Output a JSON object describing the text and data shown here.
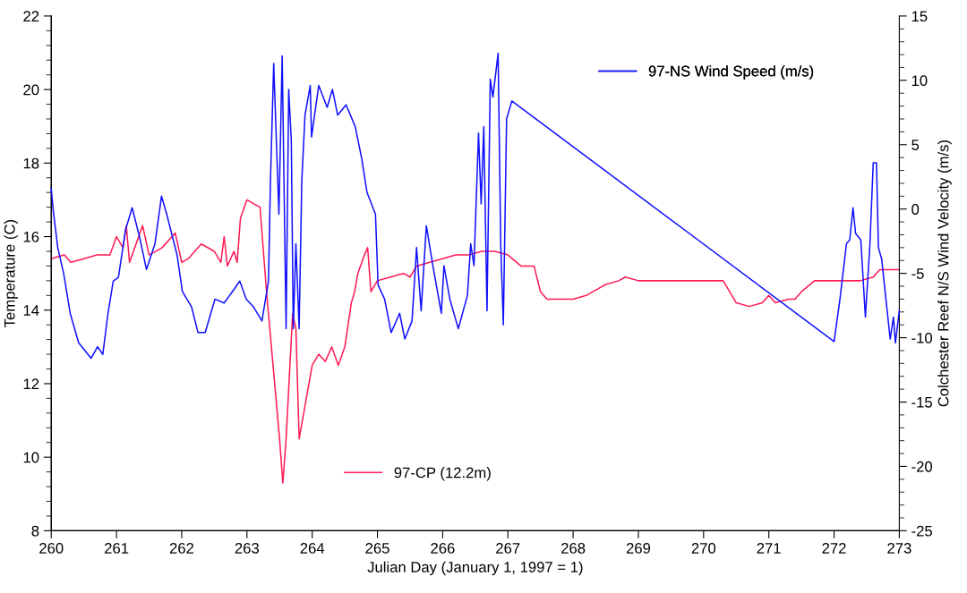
{
  "chart_data": {
    "type": "line",
    "xlabel": "Julian Day (January 1, 1997 = 1)",
    "ylabel": "Temperature (C)",
    "y2label": "Colchester Reef N/S Wind Velocity (m/s)",
    "xlim": [
      260,
      273
    ],
    "xticks": [
      260,
      261,
      262,
      263,
      264,
      265,
      266,
      267,
      268,
      269,
      270,
      271,
      272,
      273
    ],
    "ylim": [
      8,
      22
    ],
    "yticks": [
      8,
      10,
      12,
      14,
      16,
      18,
      20,
      22
    ],
    "y2lim": [
      -25,
      15
    ],
    "y2ticks": [
      -25,
      -20,
      -15,
      -10,
      -5,
      0,
      5,
      10,
      15
    ],
    "grid": false,
    "legend": "top right",
    "marker": "none",
    "line_style": "solid",
    "series": [
      {
        "name": "97-CP (12.2m)",
        "color": "#ff1a55",
        "axis": "y",
        "x": [
          260.0,
          260.2,
          260.3,
          260.5,
          260.7,
          260.9,
          261.0,
          261.1,
          261.15,
          261.2,
          261.3,
          261.4,
          261.5,
          261.7,
          261.9,
          262.0,
          262.1,
          262.3,
          262.5,
          262.6,
          262.65,
          262.7,
          262.8,
          262.85,
          262.9,
          263.0,
          263.1,
          263.2,
          263.3,
          263.4,
          263.5,
          263.55,
          263.6,
          263.7,
          263.75,
          263.8,
          263.9,
          264.0,
          264.1,
          264.2,
          264.3,
          264.4,
          264.5,
          264.6,
          264.65,
          264.7,
          264.8,
          264.85,
          264.9,
          265.0,
          265.2,
          265.4,
          265.5,
          265.6,
          265.8,
          266.0,
          266.2,
          266.4,
          266.6,
          266.8,
          267.0,
          267.2,
          267.4,
          267.5,
          267.6,
          267.8,
          268.0,
          268.2,
          268.4,
          268.5,
          268.7,
          268.8,
          269.0,
          269.5,
          270.0,
          270.3,
          270.4,
          270.5,
          270.7,
          270.9,
          271.0,
          271.1,
          271.3,
          271.4,
          271.5,
          271.7,
          272.0,
          272.2,
          272.4,
          272.6,
          272.7,
          273.0
        ],
        "values": [
          15.4,
          15.5,
          15.3,
          15.4,
          15.5,
          15.5,
          16.0,
          15.7,
          16.3,
          15.3,
          15.8,
          16.3,
          15.5,
          15.7,
          16.1,
          15.3,
          15.4,
          15.8,
          15.6,
          15.3,
          16.0,
          15.2,
          15.6,
          15.3,
          16.5,
          17.0,
          16.9,
          16.8,
          14.5,
          12.5,
          10.5,
          9.3,
          10.5,
          13.9,
          13.5,
          10.5,
          11.5,
          12.5,
          12.8,
          12.6,
          13.0,
          12.5,
          13.0,
          14.2,
          14.5,
          15.0,
          15.5,
          15.7,
          14.5,
          14.8,
          14.9,
          15.0,
          14.9,
          15.2,
          15.3,
          15.4,
          15.5,
          15.5,
          15.6,
          15.6,
          15.5,
          15.2,
          15.2,
          14.5,
          14.3,
          14.3,
          14.3,
          14.4,
          14.6,
          14.7,
          14.8,
          14.9,
          14.8,
          14.8,
          14.8,
          14.8,
          14.5,
          14.2,
          14.1,
          14.2,
          14.4,
          14.2,
          14.3,
          14.3,
          14.5,
          14.8,
          14.8,
          14.8,
          14.8,
          14.9,
          15.1,
          15.1
        ]
      },
      {
        "name": "97-NS Wind Speed (m/s)",
        "color": "#1010ff",
        "axis": "y2",
        "x": [
          260.0,
          260.03,
          260.1,
          260.19,
          260.29,
          260.42,
          260.61,
          260.71,
          260.79,
          260.87,
          260.95,
          261.03,
          261.14,
          261.24,
          261.35,
          261.46,
          261.59,
          261.69,
          261.77,
          261.93,
          262.01,
          262.15,
          262.25,
          262.36,
          262.51,
          262.65,
          262.78,
          262.89,
          262.99,
          263.1,
          263.23,
          263.33,
          263.36,
          263.41,
          263.49,
          263.54,
          263.6,
          263.64,
          263.68,
          263.71,
          263.75,
          263.8,
          263.84,
          263.89,
          263.97,
          263.99,
          264.1,
          264.23,
          264.31,
          264.39,
          264.52,
          264.66,
          264.76,
          264.84,
          264.97,
          265.01,
          265.11,
          265.21,
          265.34,
          265.42,
          265.53,
          265.6,
          265.67,
          265.75,
          265.85,
          265.98,
          266.02,
          266.11,
          266.24,
          266.38,
          266.43,
          266.48,
          266.55,
          266.59,
          266.63,
          266.68,
          266.73,
          266.77,
          266.85,
          266.89,
          266.93,
          266.98,
          267.06,
          272.0,
          272.09,
          272.19,
          272.24,
          272.29,
          272.33,
          272.41,
          272.48,
          272.55,
          272.6,
          272.65,
          272.68,
          272.73,
          272.86,
          272.91,
          272.94,
          273.0
        ],
        "values": [
          1.6,
          -0.1,
          -3.0,
          -5.0,
          -8.1,
          -10.4,
          -11.6,
          -10.7,
          -11.3,
          -8.1,
          -5.6,
          -5.3,
          -1.6,
          0.1,
          -2.1,
          -4.7,
          -2.7,
          1.0,
          -0.4,
          -3.6,
          -6.4,
          -7.6,
          -9.6,
          -9.6,
          -7.0,
          -7.3,
          -6.4,
          -5.6,
          -7.0,
          -7.6,
          -8.7,
          -5.6,
          2.1,
          11.3,
          -0.4,
          11.9,
          -9.3,
          9.3,
          5.3,
          -9.3,
          -2.7,
          -9.3,
          2.1,
          7.3,
          9.6,
          5.6,
          9.6,
          7.9,
          9.3,
          7.3,
          8.1,
          6.4,
          3.9,
          1.3,
          -0.4,
          -5.9,
          -7.0,
          -9.6,
          -8.1,
          -10.1,
          -8.7,
          -3.0,
          -7.9,
          -1.3,
          -4.4,
          -8.1,
          -4.4,
          -7.0,
          -9.3,
          -6.7,
          -2.7,
          -4.4,
          5.9,
          0.4,
          6.4,
          -7.9,
          10.1,
          8.7,
          12.1,
          -2.7,
          -9.0,
          7.0,
          8.4,
          -10.3,
          -7.0,
          -2.7,
          -2.4,
          0.1,
          -1.9,
          -2.4,
          -8.4,
          -2.7,
          3.6,
          3.6,
          -3.0,
          -3.9,
          -10.1,
          -8.4,
          -10.4,
          -7.9
        ]
      }
    ]
  }
}
